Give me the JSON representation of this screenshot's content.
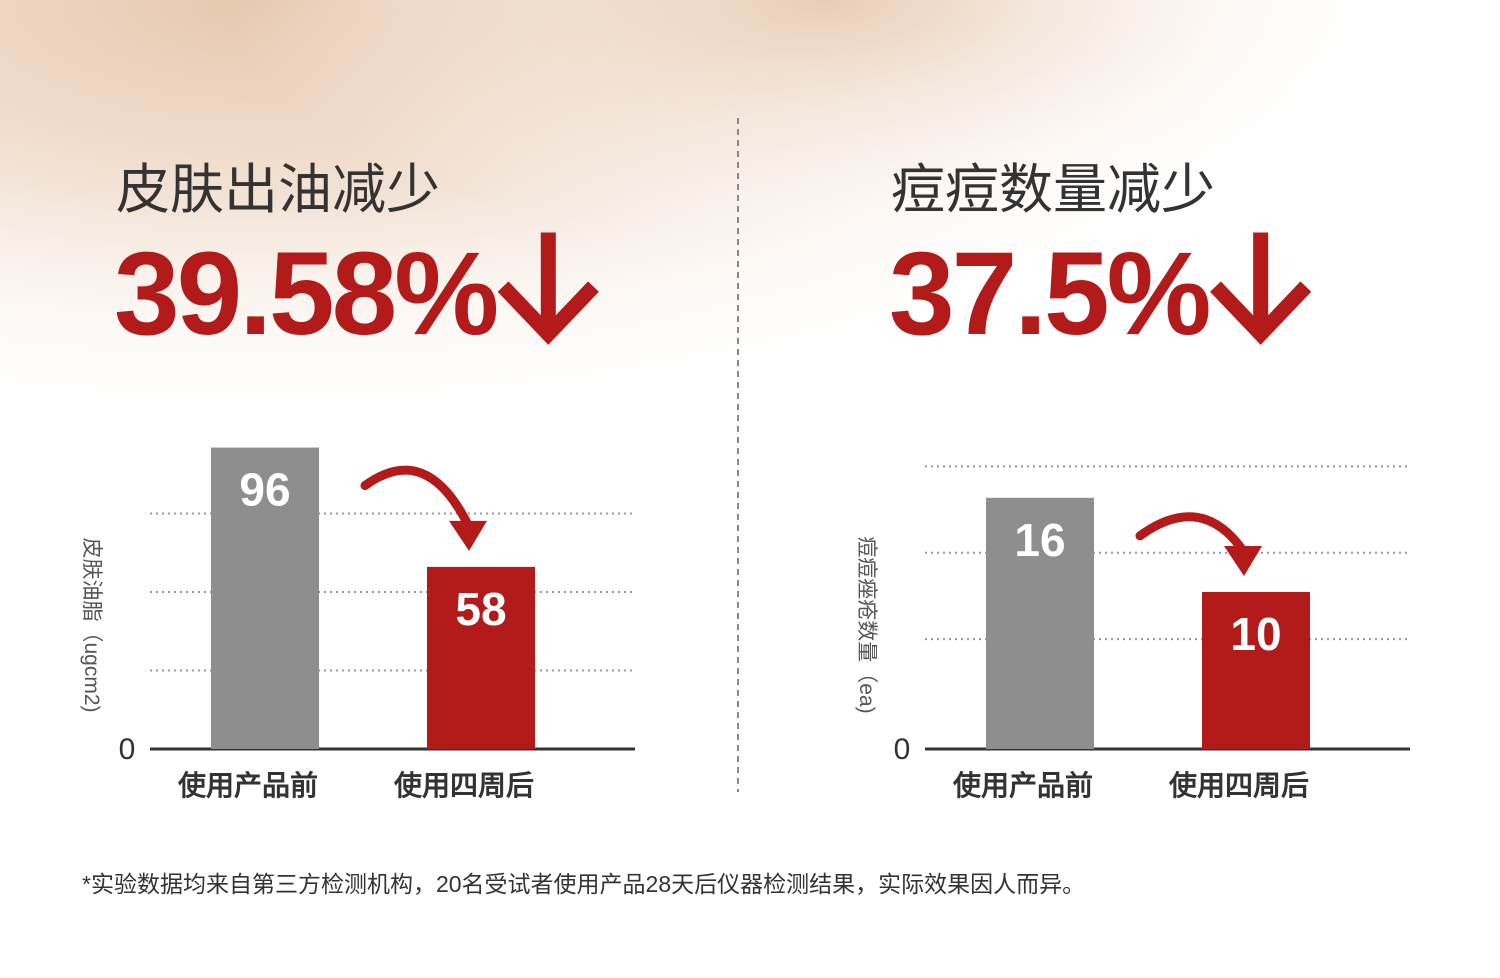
{
  "chart_data": [
    {
      "type": "bar",
      "title": "皮肤出油减少",
      "subtitle": "39.58%",
      "y_label": "皮肤油脂（ugcm2)",
      "categories": [
        "使用产品前",
        "使用四周后"
      ],
      "values": [
        96,
        58
      ],
      "colors": [
        "#8e8e8e",
        "#b31b1b"
      ],
      "ylim": [
        0,
        100
      ],
      "yticks": [
        0,
        {
          "value": 25
        },
        {
          "value": 50
        },
        {
          "value": 75
        }
      ],
      "grid": true
    },
    {
      "type": "bar",
      "title": "痘痘数量减少",
      "subtitle": "37.5%",
      "y_label": "痘痘痤疮数量（ea)",
      "categories": [
        "使用产品前",
        "使用四周后"
      ],
      "values": [
        16,
        10
      ],
      "colors": [
        "#8e8e8e",
        "#b31b1b"
      ],
      "ylim": [
        0,
        20
      ],
      "yticks": [
        0,
        {
          "value": 7
        },
        {
          "value": 12.5
        },
        {
          "value": 18
        }
      ],
      "grid": true
    }
  ],
  "footnote": "*实验数据均来自第三方检测机构，20名受试者使用产品28天后仪器检测结果，实际效果因人而异。"
}
